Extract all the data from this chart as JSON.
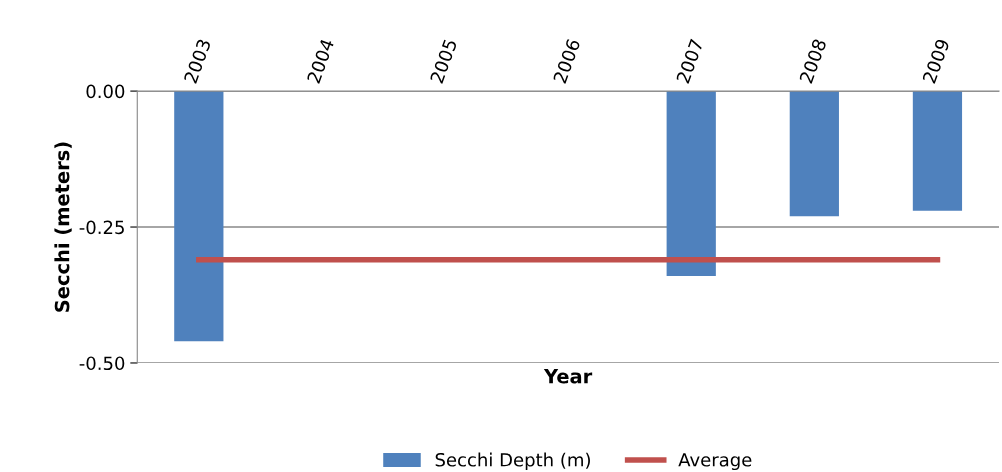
{
  "chart_data": {
    "type": "bar",
    "xlabel": "Year",
    "ylabel": "Secchi (meters)",
    "categories": [
      "2003",
      "2004",
      "2005",
      "2006",
      "2007",
      "2008",
      "2009"
    ],
    "series": [
      {
        "name": "Secchi Depth (m)",
        "color": "#4f81bd",
        "values": [
          -0.46,
          null,
          null,
          null,
          -0.34,
          -0.23,
          -0.22
        ]
      },
      {
        "name": "Average",
        "type": "line",
        "color": "#c0504d",
        "values": [
          -0.31,
          -0.31,
          -0.31,
          -0.31,
          -0.31,
          -0.31,
          -0.31
        ]
      }
    ],
    "ylim": [
      -0.5,
      0
    ],
    "yticks": [
      {
        "value": -0.5,
        "label": "-0.50"
      },
      {
        "value": -0.25,
        "label": "-0.25"
      },
      {
        "value": 0,
        "label": "0.00"
      }
    ],
    "grid": "y",
    "legend": "bottom",
    "marker": "none",
    "line_style": "solid"
  }
}
